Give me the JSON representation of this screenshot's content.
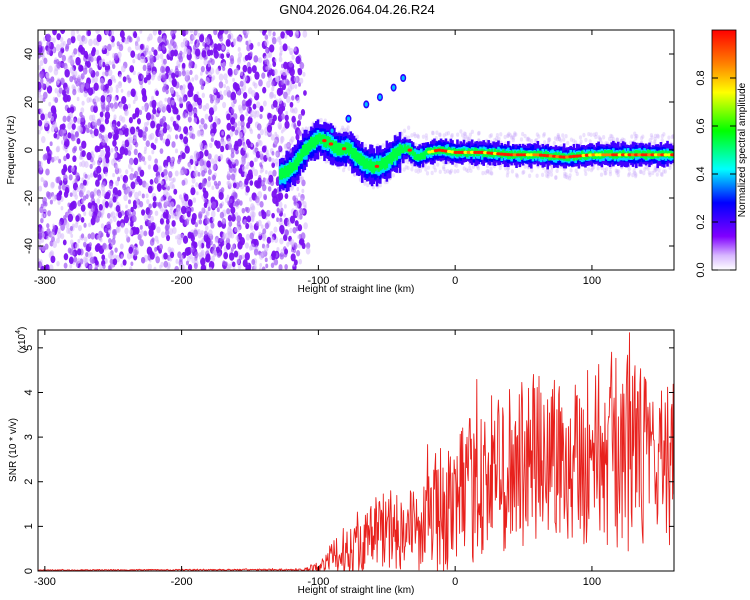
{
  "chart_data": [
    {
      "type": "heatmap",
      "title": "GN04.2026.064.04.26.R24",
      "xlabel": "Height of straight line (km)",
      "ylabel": "Frequency (Hz)",
      "xlim": [
        -305,
        160
      ],
      "ylim": [
        -50,
        50
      ],
      "xticks": [
        -300,
        -200,
        -100,
        0,
        100
      ],
      "yticks": [
        -40,
        -20,
        0,
        20,
        40
      ],
      "colorbar": {
        "label": "Normalized spectral amplitude",
        "range": [
          0.0,
          1.0
        ],
        "ticks": [
          0.0,
          0.2,
          0.4,
          0.6,
          0.8
        ],
        "tick_labels": [
          "0.0",
          "0.2",
          "0.4",
          "0.6",
          "0.8"
        ],
        "colors": [
          "#ffffff",
          "#8000ff",
          "#0000ff",
          "#00ffff",
          "#00ff00",
          "#ffff00",
          "#ff8000",
          "#ff0000"
        ]
      },
      "ridge": [
        {
          "x": -125,
          "f": -10
        },
        {
          "x": -118,
          "f": -7
        },
        {
          "x": -110,
          "f": 0
        },
        {
          "x": -100,
          "f": 5
        },
        {
          "x": -92,
          "f": 3
        },
        {
          "x": -85,
          "f": 0
        },
        {
          "x": -78,
          "f": 1
        },
        {
          "x": -72,
          "f": -3
        },
        {
          "x": -65,
          "f": -6
        },
        {
          "x": -58,
          "f": -7
        },
        {
          "x": -50,
          "f": -5
        },
        {
          "x": -42,
          "f": -1
        },
        {
          "x": -35,
          "f": 1
        },
        {
          "x": -28,
          "f": -3
        },
        {
          "x": -20,
          "f": -1
        },
        {
          "x": -12,
          "f": 0
        },
        {
          "x": 0,
          "f": -1
        },
        {
          "x": 20,
          "f": -1
        },
        {
          "x": 40,
          "f": -2
        },
        {
          "x": 60,
          "f": -2
        },
        {
          "x": 80,
          "f": -3
        },
        {
          "x": 100,
          "f": -2
        },
        {
          "x": 120,
          "f": -2
        },
        {
          "x": 140,
          "f": -2
        },
        {
          "x": 160,
          "f": -2
        }
      ],
      "side_branch": [
        {
          "x": -90,
          "f": 8
        },
        {
          "x": -78,
          "f": 13
        },
        {
          "x": -65,
          "f": 19
        },
        {
          "x": -55,
          "f": 22
        },
        {
          "x": -45,
          "f": 26
        },
        {
          "x": -38,
          "f": 30
        }
      ]
    },
    {
      "type": "line",
      "xlabel": "Height of straight line (km)",
      "ylabel": "SNR (10 * v/v)",
      "yscale_label": "(x10",
      "yscale_exp": "4",
      "xlim": [
        -305,
        160
      ],
      "ylim": [
        0,
        5.4
      ],
      "xticks": [
        -300,
        -200,
        -100,
        0,
        100
      ],
      "yticks": [
        0,
        1,
        2,
        3,
        4,
        5
      ],
      "color": "#e8211d",
      "envelope": [
        {
          "x": -305,
          "mean": 0.02,
          "amp": 0.01
        },
        {
          "x": -110,
          "mean": 0.03,
          "amp": 0.02
        },
        {
          "x": -95,
          "mean": 0.15,
          "amp": 0.25
        },
        {
          "x": -85,
          "mean": 0.4,
          "amp": 0.5
        },
        {
          "x": -70,
          "mean": 0.6,
          "amp": 0.6
        },
        {
          "x": -55,
          "mean": 0.9,
          "amp": 0.9
        },
        {
          "x": -40,
          "mean": 1.0,
          "amp": 1.0
        },
        {
          "x": -25,
          "mean": 0.9,
          "amp": 0.9
        },
        {
          "x": -15,
          "mean": 1.3,
          "amp": 1.4
        },
        {
          "x": 0,
          "mean": 1.5,
          "amp": 1.5
        },
        {
          "x": 15,
          "mean": 1.9,
          "amp": 1.7
        },
        {
          "x": 30,
          "mean": 2.2,
          "amp": 1.9
        },
        {
          "x": 50,
          "mean": 2.4,
          "amp": 2.0
        },
        {
          "x": 70,
          "mean": 2.6,
          "amp": 2.0
        },
        {
          "x": 90,
          "mean": 2.6,
          "amp": 2.0
        },
        {
          "x": 110,
          "mean": 2.7,
          "amp": 2.2
        },
        {
          "x": 125,
          "mean": 2.7,
          "amp": 2.3
        },
        {
          "x": 140,
          "mean": 2.5,
          "amp": 2.0
        },
        {
          "x": 160,
          "mean": 2.4,
          "amp": 1.8
        }
      ]
    }
  ]
}
